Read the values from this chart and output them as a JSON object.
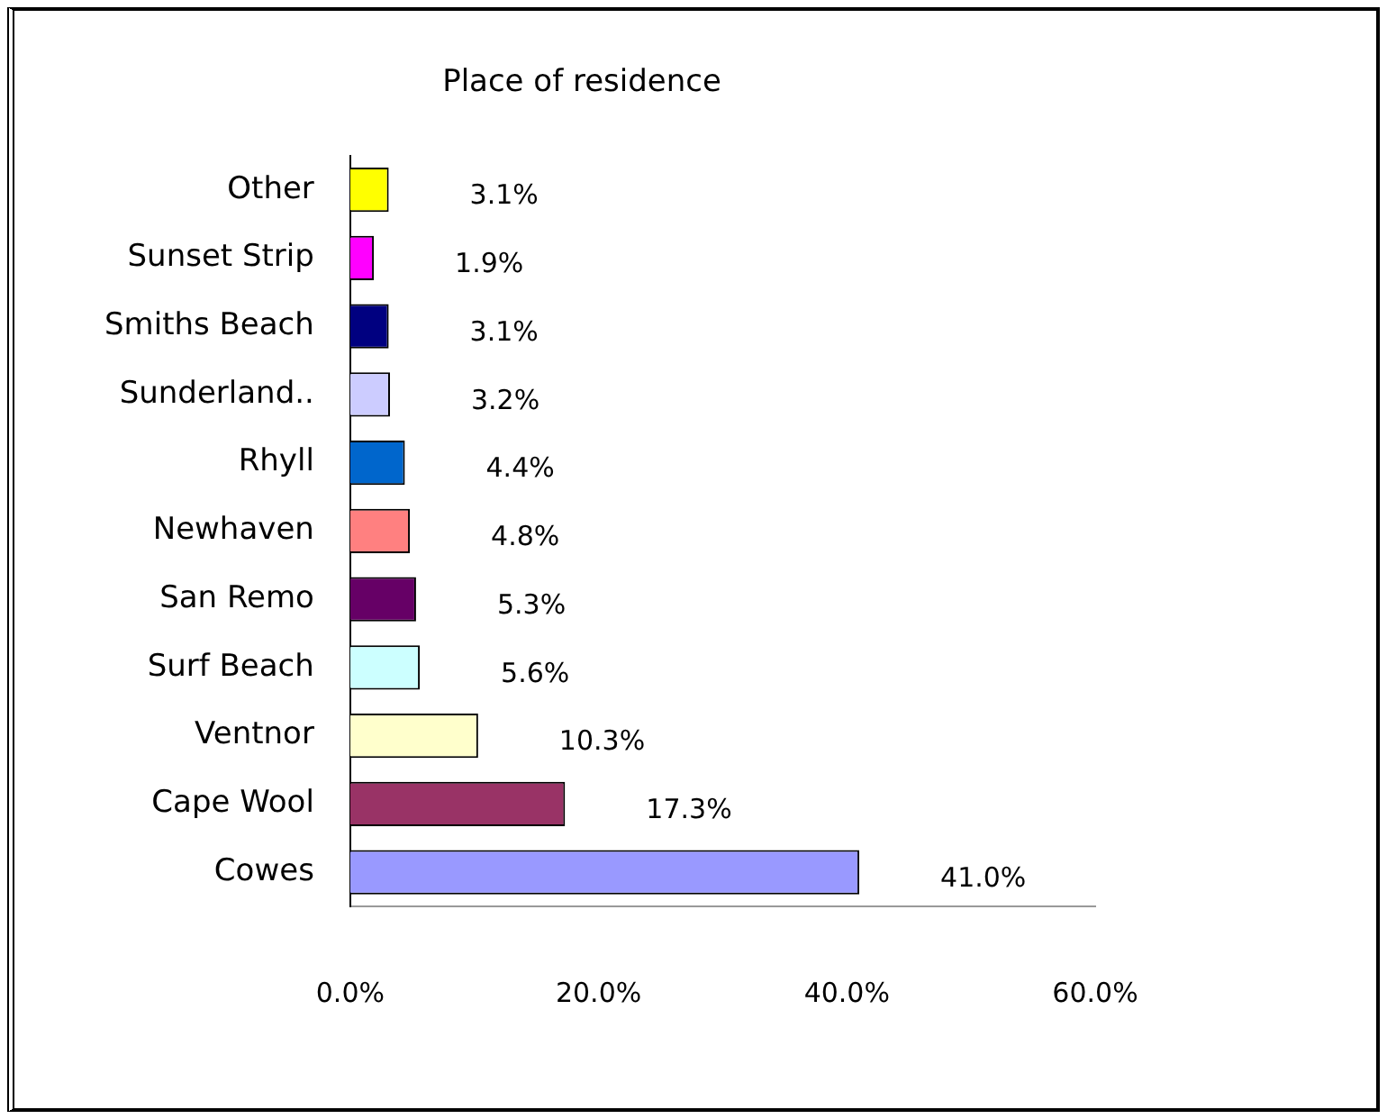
{
  "chart_data": {
    "type": "bar",
    "orientation": "horizontal",
    "title": "Place of residence",
    "categories": [
      "Other",
      "Sunset Strip",
      "Smiths Beach",
      "Sunderland..",
      "Rhyll",
      "Newhaven",
      "San Remo",
      "Surf Beach",
      "Ventnor",
      "Cape Wool",
      "Cowes"
    ],
    "values": [
      3.1,
      1.9,
      3.1,
      3.2,
      4.4,
      4.8,
      5.3,
      5.6,
      10.3,
      17.3,
      41.0
    ],
    "colors": [
      "#ffff00",
      "#ff00ff",
      "#000080",
      "#ccccff",
      "#0066cc",
      "#ff8080",
      "#660066",
      "#ccffff",
      "#ffffcc",
      "#993366",
      "#9999ff"
    ],
    "value_labels": [
      "3.1%",
      "1.9%",
      "3.1%",
      "3.2%",
      "4.4%",
      "4.8%",
      "5.3%",
      "5.6%",
      "10.3%",
      "17.3%",
      "41.0%"
    ],
    "xlim": [
      0,
      60
    ],
    "xticks": [
      {
        "value": 0,
        "label": "0.0%"
      },
      {
        "value": 20,
        "label": "20.0%"
      },
      {
        "value": 40,
        "label": "40.0%"
      },
      {
        "value": 60,
        "label": "60.0%"
      }
    ],
    "grid": false,
    "legend": false
  }
}
